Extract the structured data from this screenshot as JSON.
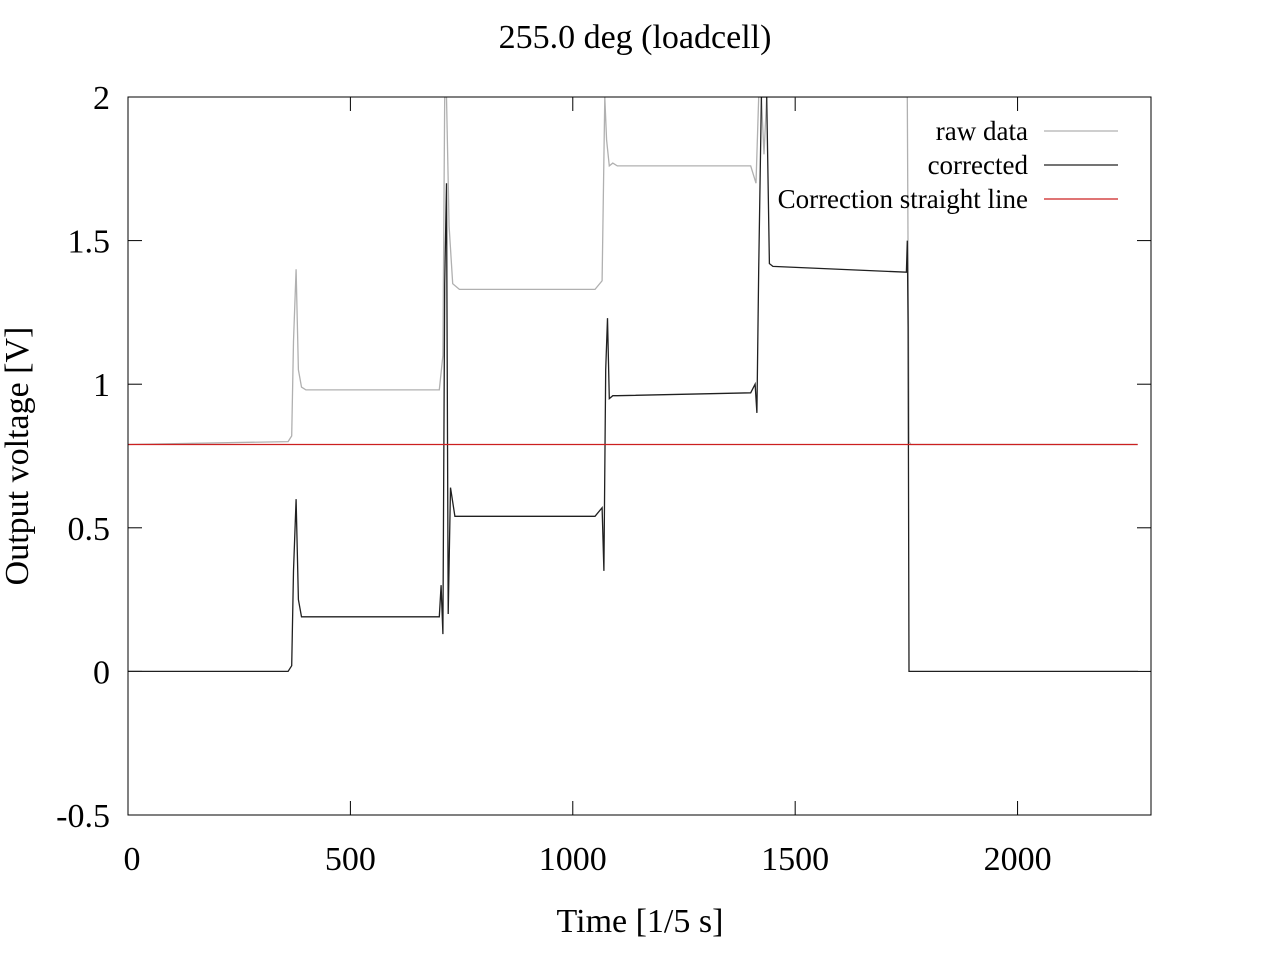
{
  "chart_data": {
    "type": "line",
    "title": "255.0 deg (loadcell)",
    "xlabel": "Time [1/5 s]",
    "ylabel": "Output voltage [V]",
    "xlim": [
      0,
      2300
    ],
    "ylim": [
      -0.5,
      2
    ],
    "xticks": [
      0,
      500,
      1000,
      1500,
      2000
    ],
    "xtick_labels": [
      "0",
      "500",
      "1000",
      "1500",
      "2000"
    ],
    "yticks": [
      -0.5,
      0,
      0.5,
      1,
      1.5,
      2
    ],
    "ytick_labels": [
      "-0.5",
      "0",
      "0.5",
      "1",
      "1.5",
      "2"
    ],
    "grid": false,
    "legend_position": "top-right",
    "series": [
      {
        "name": "raw data",
        "color": "#b0b0b0",
        "x": [
          0,
          360,
          368,
          372,
          378,
          383,
          390,
          400,
          700,
          708,
          712,
          716,
          722,
          730,
          745,
          1050,
          1066,
          1072,
          1076,
          1082,
          1090,
          1100,
          1400,
          1412,
          1418,
          1424,
          1430,
          1436,
          1442,
          1748,
          1752,
          1756,
          1760,
          2270
        ],
        "y": [
          0.79,
          0.8,
          0.82,
          1.15,
          1.4,
          1.05,
          0.99,
          0.98,
          0.98,
          1.1,
          2.0,
          2.0,
          1.55,
          1.35,
          1.33,
          1.33,
          1.36,
          2.0,
          1.85,
          1.76,
          1.77,
          1.76,
          1.76,
          1.7,
          2.0,
          2.0,
          1.8,
          2.0,
          2.0,
          2.0,
          2.0,
          0.8,
          0.79,
          0.79
        ]
      },
      {
        "name": "corrected",
        "color": "#202020",
        "x": [
          0,
          360,
          368,
          372,
          378,
          383,
          390,
          400,
          700,
          704,
          708,
          712,
          716,
          720,
          725,
          735,
          1050,
          1066,
          1070,
          1074,
          1078,
          1082,
          1090,
          1100,
          1400,
          1410,
          1414,
          1418,
          1424,
          1430,
          1436,
          1442,
          1450,
          1750,
          1752,
          1754,
          1756,
          1758,
          1762,
          2270
        ],
        "y": [
          0.0,
          0.0,
          0.02,
          0.35,
          0.6,
          0.25,
          0.19,
          0.19,
          0.19,
          0.3,
          0.13,
          1.35,
          1.7,
          0.2,
          0.64,
          0.54,
          0.54,
          0.57,
          0.35,
          1.05,
          1.23,
          0.95,
          0.96,
          0.96,
          0.97,
          1.0,
          0.9,
          1.4,
          2.0,
          2.0,
          2.0,
          1.42,
          1.41,
          1.39,
          1.5,
          1.2,
          0.0,
          0.0,
          0.0,
          0.0
        ]
      },
      {
        "name": "Correction straight line",
        "color": "#cc2020",
        "x": [
          0,
          2270
        ],
        "y": [
          0.79,
          0.79
        ]
      }
    ]
  }
}
